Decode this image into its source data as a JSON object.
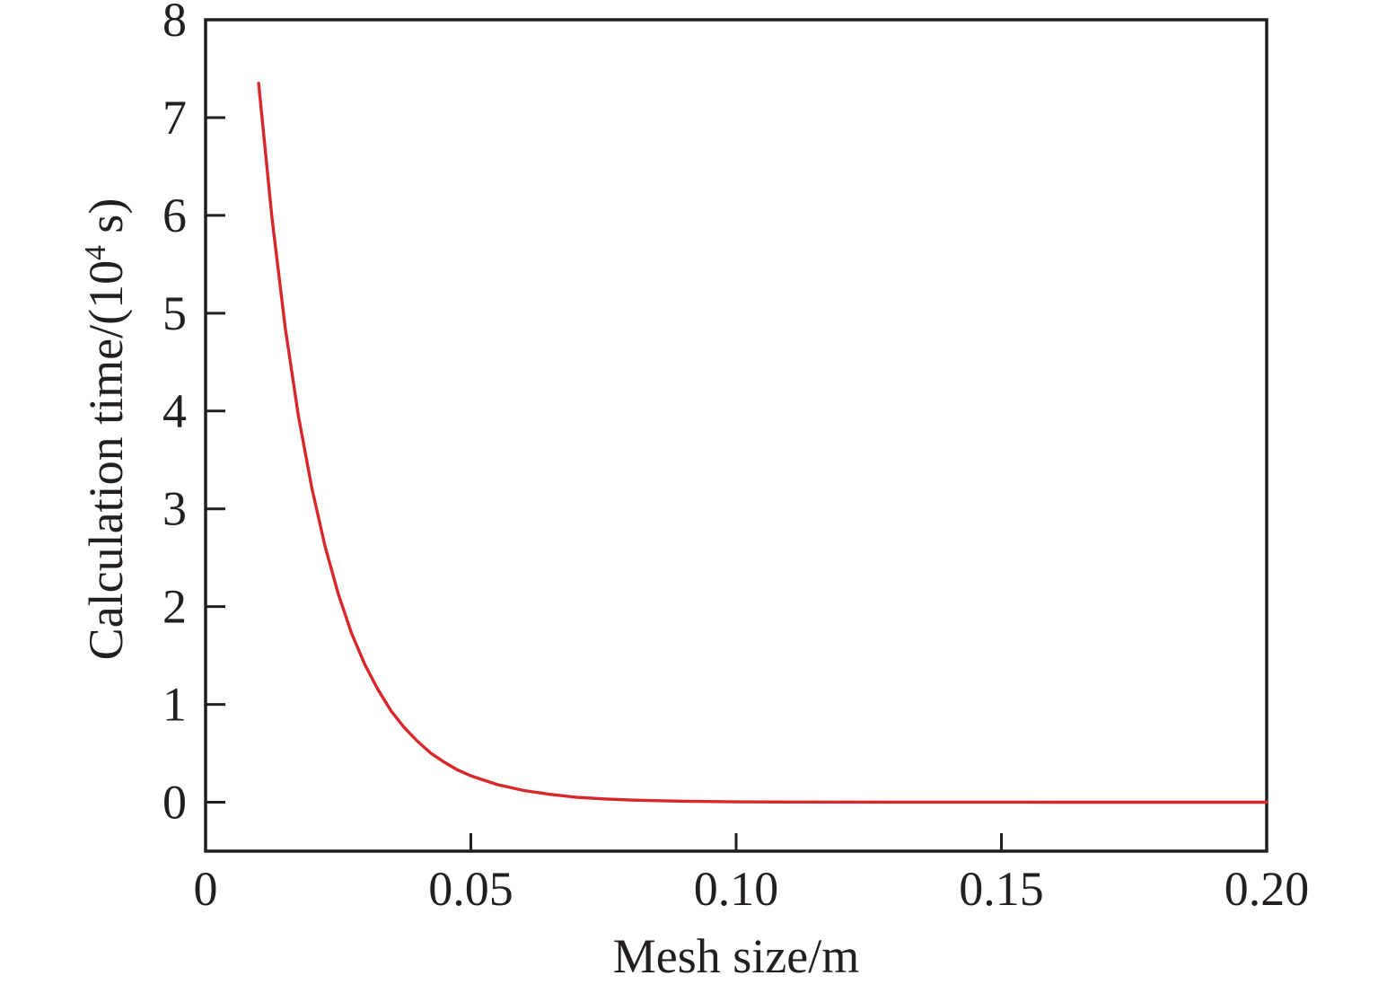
{
  "figure": {
    "background": "#ffffff",
    "frame_color": "#231f20",
    "text_color": "#231f20"
  },
  "chart_data": {
    "type": "line",
    "title": "",
    "xlabel": "Mesh size/m",
    "ylabel": "Calculation time/(10⁴ s)",
    "ylabel_parts": {
      "prefix": "Calculation time/(10",
      "sup": "4",
      "suffix": " s)"
    },
    "xlim": [
      0,
      0.2
    ],
    "ylim": [
      -0.5,
      8
    ],
    "grid": false,
    "legend": null,
    "x_ticks": [
      {
        "value": 0.0,
        "label": "0"
      },
      {
        "value": 0.05,
        "label": "0.05"
      },
      {
        "value": 0.1,
        "label": "0.10"
      },
      {
        "value": 0.15,
        "label": "0.15"
      },
      {
        "value": 0.2,
        "label": "0.20"
      }
    ],
    "y_ticks": [
      {
        "value": 0,
        "label": "0"
      },
      {
        "value": 1,
        "label": "1"
      },
      {
        "value": 2,
        "label": "2"
      },
      {
        "value": 3,
        "label": "3"
      },
      {
        "value": 4,
        "label": "4"
      },
      {
        "value": 5,
        "label": "5"
      },
      {
        "value": 6,
        "label": "6"
      },
      {
        "value": 7,
        "label": "7"
      },
      {
        "value": 8,
        "label": "8"
      }
    ],
    "series": [
      {
        "name": "calculation-time-curve",
        "color": "#d8262b",
        "line_width": 3.4,
        "points": [
          [
            0.01,
            7.35
          ],
          [
            0.0125,
            5.98
          ],
          [
            0.015,
            4.86
          ],
          [
            0.0175,
            3.95
          ],
          [
            0.02,
            3.22
          ],
          [
            0.0225,
            2.62
          ],
          [
            0.025,
            2.13
          ],
          [
            0.0275,
            1.73
          ],
          [
            0.03,
            1.41
          ],
          [
            0.0325,
            1.15
          ],
          [
            0.035,
            0.93
          ],
          [
            0.0375,
            0.76
          ],
          [
            0.04,
            0.62
          ],
          [
            0.0425,
            0.5
          ],
          [
            0.045,
            0.41
          ],
          [
            0.0475,
            0.33
          ],
          [
            0.05,
            0.27
          ],
          [
            0.055,
            0.18
          ],
          [
            0.06,
            0.12
          ],
          [
            0.065,
            0.08
          ],
          [
            0.07,
            0.05
          ],
          [
            0.075,
            0.034
          ],
          [
            0.08,
            0.022
          ],
          [
            0.09,
            0.01
          ],
          [
            0.1,
            0.004
          ],
          [
            0.11,
            0.002
          ],
          [
            0.13,
            0.001
          ],
          [
            0.16,
            0.0
          ],
          [
            0.2,
            0.0
          ]
        ]
      }
    ]
  }
}
